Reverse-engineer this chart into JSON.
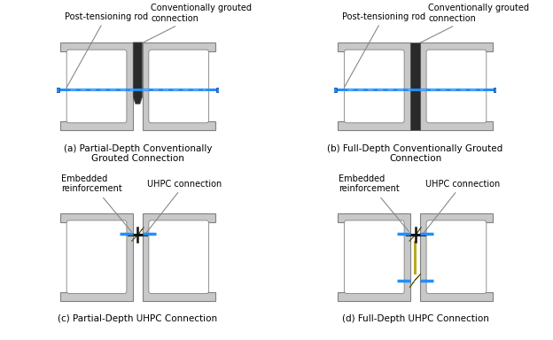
{
  "fig_width": 6.24,
  "fig_height": 3.84,
  "dpi": 100,
  "bg_color": "#ffffff",
  "beam_color": "#c8c8c8",
  "beam_edge_color": "#808080",
  "rod_color": "#1e90ff",
  "rod_dash_color": "#aaaacc",
  "conn_grout_color": "#2a2a2a",
  "uhpc_color": "#b8a820",
  "uhpc_edge_color": "#5a5010",
  "embed_color": "#111111",
  "annotation_color": "#000000",
  "arrow_color": "#888888",
  "captions": [
    "(a) Partial-Depth Conventionally\nGrouted Connection",
    "(b) Full-Depth Conventionally Grouted\nConnection",
    "(c) Partial-Depth UHPC Connection",
    "(d) Full-Depth UHPC Connection"
  ],
  "caption_fontsize": 7.5,
  "annotation_fontsize": 7.0
}
